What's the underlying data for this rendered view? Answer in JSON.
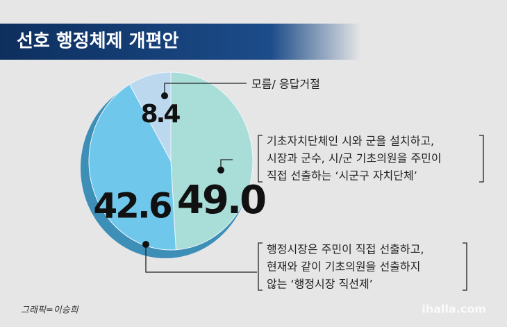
{
  "chart_data": {
    "type": "pie",
    "title": "선호 행정체제 개편안",
    "categories": [
      [
        "기초자치단체인 시와 군을 설치하고,",
        "시장과 군수, 시/군 기초의원을 주민이",
        "직접 선출하는 ‘시군구 자치단체’"
      ],
      [
        "행정시장은 주민이 직접 선출하고,",
        "현재와 같이 기초의원을 선출하지",
        "않는 ‘행정시장 직선제’"
      ],
      [
        "모름/ 응답거절"
      ]
    ],
    "values": [
      49.0,
      42.6,
      8.4
    ],
    "value_labels": [
      "49.0",
      "42.6",
      "8.4"
    ],
    "colors": [
      "#a9ddd8",
      "#6fc8ec",
      "#bcd8ef"
    ],
    "credit": "그래픽=이승희",
    "watermark": "ihalla.com"
  }
}
